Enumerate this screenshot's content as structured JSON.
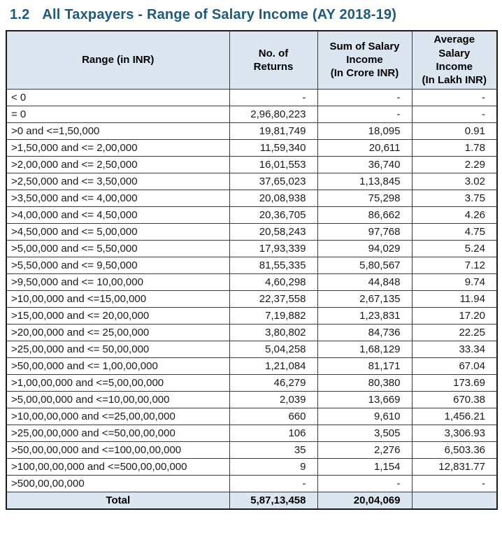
{
  "title": {
    "number": "1.2",
    "text": "All Taxpayers - Range of Salary Income (AY 2018-19)"
  },
  "colors": {
    "title_text": "#1f5a7d",
    "header_bg": "#dce6f1",
    "total_bg": "#dce6f1",
    "border": "#1a1a1a"
  },
  "table": {
    "columns": [
      "Range (in INR)",
      "No. of\nReturns",
      "Sum of Salary\nIncome\n(In Crore INR)",
      "Average\nSalary\nIncome\n(In Lakh INR)"
    ],
    "rows": [
      [
        "< 0",
        "-",
        "-",
        "-"
      ],
      [
        "= 0",
        "2,96,80,223",
        "-",
        "-"
      ],
      [
        ">0 and <=1,50,000",
        "19,81,749",
        "18,095",
        "0.91"
      ],
      [
        ">1,50,000 and <= 2,00,000",
        "11,59,340",
        "20,611",
        "1.78"
      ],
      [
        ">2,00,000 and <= 2,50,000",
        "16,01,553",
        "36,740",
        "2.29"
      ],
      [
        ">2,50,000 and <= 3,50,000",
        "37,65,023",
        "1,13,845",
        "3.02"
      ],
      [
        ">3,50,000 and <= 4,00,000",
        "20,08,938",
        "75,298",
        "3.75"
      ],
      [
        ">4,00,000 and <= 4,50,000",
        "20,36,705",
        "86,662",
        "4.26"
      ],
      [
        ">4,50,000 and <= 5,00,000",
        "20,58,243",
        "97,768",
        "4.75"
      ],
      [
        ">5,00,000 and <= 5,50,000",
        "17,93,339",
        "94,029",
        "5.24"
      ],
      [
        ">5,50,000 and <= 9,50,000",
        "81,55,335",
        "5,80,567",
        "7.12"
      ],
      [
        ">9,50,000 and <= 10,00,000",
        "4,60,298",
        "44,848",
        "9.74"
      ],
      [
        ">10,00,000 and <=15,00,000",
        "22,37,558",
        "2,67,135",
        "11.94"
      ],
      [
        ">15,00,000 and <= 20,00,000",
        "7,19,882",
        "1,23,831",
        "17.20"
      ],
      [
        ">20,00,000 and <= 25,00,000",
        "3,80,802",
        "84,736",
        "22.25"
      ],
      [
        ">25,00,000 and <= 50,00,000",
        "5,04,258",
        "1,68,129",
        "33.34"
      ],
      [
        ">50,00,000 and <= 1,00,00,000",
        "1,21,084",
        "81,171",
        "67.04"
      ],
      [
        ">1,00,00,000 and <=5,00,00,000",
        "46,279",
        "80,380",
        "173.69"
      ],
      [
        ">5,00,00,000 and <=10,00,00,000",
        "2,039",
        "13,669",
        "670.38"
      ],
      [
        ">10,00,00,000 and <=25,00,00,000",
        "660",
        "9,610",
        "1,456.21"
      ],
      [
        ">25,00,00,000 and <=50,00,00,000",
        "106",
        "3,505",
        "3,306.93"
      ],
      [
        ">50,00,00,000 and <=100,00,00,000",
        "35",
        "2,276",
        "6,503.36"
      ],
      [
        ">100,00,00,000 and <=500,00,00,000",
        "9",
        "1,154",
        "12,831.77"
      ],
      [
        ">500,00,00,000",
        "-",
        "-",
        "-"
      ]
    ],
    "total_row": [
      "Total",
      "5,87,13,458",
      "20,04,069",
      ""
    ]
  }
}
